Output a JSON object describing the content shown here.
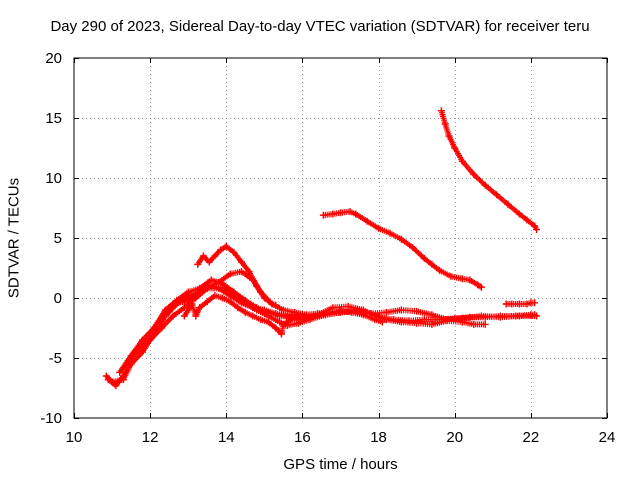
{
  "chart_data": {
    "type": "scatter",
    "title": "Day 290 of 2023, Sidereal Day-to-day VTEC variation (SDTVAR) for receiver teru",
    "xlabel": "GPS time / hours",
    "ylabel": "SDTVAR / TECUs",
    "xlim": [
      10,
      24
    ],
    "ylim": [
      -10,
      20
    ],
    "xticks": [
      10,
      12,
      14,
      16,
      18,
      20,
      22,
      24
    ],
    "yticks": [
      -10,
      -5,
      0,
      5,
      10,
      15,
      20
    ],
    "grid": true,
    "marker": "+",
    "color": "#ff0000",
    "series": [
      {
        "name": "track-1",
        "points": [
          [
            10.85,
            -6.5
          ],
          [
            11.0,
            -7.0
          ],
          [
            11.3,
            -6.8
          ],
          [
            11.5,
            -5.5
          ],
          [
            11.8,
            -4.5
          ],
          [
            12.0,
            -3.5
          ],
          [
            12.3,
            -2.5
          ],
          [
            12.6,
            -1.5
          ],
          [
            12.9,
            -0.8
          ],
          [
            13.2,
            0.0
          ],
          [
            13.5,
            0.8
          ],
          [
            13.8,
            0.8
          ],
          [
            14.1,
            0.2
          ],
          [
            14.4,
            -0.4
          ],
          [
            14.7,
            -0.8
          ],
          [
            15.0,
            -1.0
          ],
          [
            15.3,
            -1.3
          ],
          [
            15.6,
            -1.5
          ],
          [
            16.0,
            -1.6
          ],
          [
            16.4,
            -1.4
          ],
          [
            16.8,
            -0.8
          ],
          [
            17.2,
            -0.7
          ],
          [
            17.6,
            -1.0
          ],
          [
            18.0,
            -1.6
          ],
          [
            18.4,
            -1.8
          ],
          [
            18.8,
            -1.9
          ],
          [
            19.2,
            -1.8
          ],
          [
            19.6,
            -1.8
          ],
          [
            20.0,
            -1.7
          ],
          [
            20.4,
            -1.6
          ],
          [
            20.8,
            -1.6
          ],
          [
            21.2,
            -1.5
          ],
          [
            21.6,
            -1.5
          ],
          [
            22.0,
            -1.4
          ],
          [
            22.1,
            -1.4
          ]
        ]
      },
      {
        "name": "track-2",
        "points": [
          [
            10.9,
            -6.8
          ],
          [
            11.1,
            -7.3
          ],
          [
            11.3,
            -6.5
          ],
          [
            11.5,
            -5.0
          ],
          [
            11.8,
            -4.0
          ],
          [
            12.1,
            -3.0
          ],
          [
            12.4,
            -1.5
          ],
          [
            12.7,
            -0.5
          ],
          [
            13.0,
            0.2
          ],
          [
            13.3,
            0.5
          ],
          [
            13.6,
            1.0
          ],
          [
            13.9,
            0.8
          ],
          [
            14.2,
            0.2
          ],
          [
            14.5,
            -0.5
          ],
          [
            14.8,
            -1.0
          ],
          [
            15.1,
            -1.5
          ],
          [
            15.4,
            -2.0
          ],
          [
            15.6,
            -2.3
          ],
          [
            15.9,
            -2.1
          ],
          [
            16.2,
            -1.8
          ],
          [
            16.6,
            -1.4
          ],
          [
            17.0,
            -1.2
          ],
          [
            17.4,
            -1.1
          ],
          [
            17.8,
            -1.3
          ],
          [
            18.2,
            -1.2
          ],
          [
            18.6,
            -1.0
          ],
          [
            19.0,
            -1.1
          ],
          [
            19.4,
            -1.4
          ],
          [
            19.8,
            -1.8
          ],
          [
            20.2,
            -1.7
          ],
          [
            20.7,
            -1.5
          ],
          [
            21.2,
            -1.6
          ],
          [
            21.7,
            -1.5
          ],
          [
            22.15,
            -1.5
          ]
        ]
      },
      {
        "name": "track-3",
        "points": [
          [
            11.2,
            -6.2
          ],
          [
            11.5,
            -4.8
          ],
          [
            11.8,
            -3.5
          ],
          [
            12.1,
            -2.5
          ],
          [
            12.4,
            -1.0
          ],
          [
            12.7,
            -0.2
          ],
          [
            13.0,
            0.5
          ],
          [
            13.3,
            0.8
          ],
          [
            13.6,
            1.5
          ],
          [
            13.9,
            1.2
          ],
          [
            14.2,
            0.5
          ],
          [
            14.5,
            -0.2
          ],
          [
            14.8,
            -0.8
          ],
          [
            15.1,
            -1.2
          ],
          [
            15.4,
            -1.5
          ],
          [
            15.8,
            -1.6
          ],
          [
            16.2,
            -1.6
          ],
          [
            16.6,
            -1.4
          ],
          [
            17.0,
            -1.2
          ],
          [
            17.4,
            -1.0
          ],
          [
            17.8,
            -1.3
          ],
          [
            18.2,
            -1.8
          ],
          [
            18.6,
            -2.0
          ],
          [
            19.0,
            -2.1
          ],
          [
            19.4,
            -2.2
          ],
          [
            19.8,
            -1.9
          ],
          [
            20.2,
            -2.0
          ],
          [
            20.5,
            -2.2
          ],
          [
            20.8,
            -2.2
          ]
        ]
      },
      {
        "name": "track-4",
        "points": [
          [
            12.3,
            -1.8
          ],
          [
            12.6,
            -0.5
          ],
          [
            12.9,
            -0.3
          ],
          [
            13.2,
            0.3
          ],
          [
            13.5,
            0.9
          ],
          [
            13.8,
            1.3
          ],
          [
            14.1,
            2.0
          ],
          [
            14.4,
            2.2
          ],
          [
            14.7,
            1.5
          ],
          [
            14.9,
            0.5
          ],
          [
            15.2,
            -0.5
          ],
          [
            15.5,
            -1.0
          ],
          [
            15.8,
            -1.2
          ],
          [
            16.1,
            -1.4
          ],
          [
            16.4,
            -1.3
          ],
          [
            16.7,
            -1.2
          ],
          [
            17.0,
            -1.1
          ],
          [
            17.3,
            -1.2
          ],
          [
            17.6,
            -1.4
          ],
          [
            17.9,
            -1.8
          ],
          [
            18.1,
            -2.0
          ]
        ]
      },
      {
        "name": "track-5",
        "points": [
          [
            13.25,
            2.8
          ],
          [
            13.4,
            3.5
          ],
          [
            13.55,
            3.0
          ],
          [
            13.7,
            3.5
          ],
          [
            13.85,
            4.0
          ],
          [
            14.0,
            4.3
          ],
          [
            14.2,
            3.8
          ],
          [
            14.4,
            3.0
          ],
          [
            14.6,
            2.2
          ],
          [
            14.8,
            1.0
          ],
          [
            15.0,
            0.0
          ],
          [
            15.2,
            -0.5
          ],
          [
            15.3,
            -0.6
          ]
        ]
      },
      {
        "name": "track-6",
        "points": [
          [
            12.9,
            -1.5
          ],
          [
            13.1,
            -0.5
          ],
          [
            13.2,
            -1.5
          ],
          [
            13.3,
            -0.8
          ],
          [
            13.5,
            -0.3
          ],
          [
            13.7,
            0.2
          ],
          [
            13.9,
            0.0
          ],
          [
            14.1,
            -0.3
          ],
          [
            14.3,
            -0.8
          ],
          [
            14.5,
            -1.2
          ],
          [
            14.7,
            -1.5
          ],
          [
            14.9,
            -1.8
          ],
          [
            15.1,
            -2.0
          ],
          [
            15.3,
            -2.5
          ],
          [
            15.45,
            -3.0
          ],
          [
            15.5,
            -2.2
          ],
          [
            15.7,
            -1.8
          ],
          [
            15.9,
            -1.8
          ],
          [
            16.1,
            -1.7
          ]
        ]
      },
      {
        "name": "track-7",
        "points": [
          [
            16.55,
            6.9
          ],
          [
            16.8,
            7.0
          ],
          [
            17.0,
            7.1
          ],
          [
            17.25,
            7.2
          ],
          [
            17.4,
            7.0
          ],
          [
            17.7,
            6.4
          ],
          [
            18.0,
            5.8
          ],
          [
            18.3,
            5.4
          ],
          [
            18.6,
            4.9
          ],
          [
            18.9,
            4.2
          ],
          [
            19.2,
            3.3
          ],
          [
            19.4,
            2.8
          ],
          [
            19.6,
            2.3
          ],
          [
            19.9,
            1.8
          ],
          [
            20.2,
            1.6
          ],
          [
            20.4,
            1.5
          ],
          [
            20.6,
            1.1
          ],
          [
            20.7,
            0.9
          ]
        ]
      },
      {
        "name": "track-8",
        "points": [
          [
            19.65,
            15.6
          ],
          [
            19.75,
            14.5
          ],
          [
            19.85,
            13.5
          ],
          [
            20.0,
            12.5
          ],
          [
            20.2,
            11.4
          ],
          [
            20.5,
            10.3
          ],
          [
            20.8,
            9.4
          ],
          [
            21.1,
            8.6
          ],
          [
            21.4,
            7.8
          ],
          [
            21.7,
            7.0
          ],
          [
            21.9,
            6.5
          ],
          [
            22.1,
            6.0
          ],
          [
            22.15,
            5.7
          ]
        ]
      },
      {
        "name": "track-9",
        "points": [
          [
            21.35,
            -0.5
          ],
          [
            21.5,
            -0.5
          ],
          [
            21.7,
            -0.5
          ],
          [
            21.9,
            -0.5
          ],
          [
            22.0,
            -0.4
          ],
          [
            22.1,
            -0.4
          ]
        ]
      }
    ]
  }
}
